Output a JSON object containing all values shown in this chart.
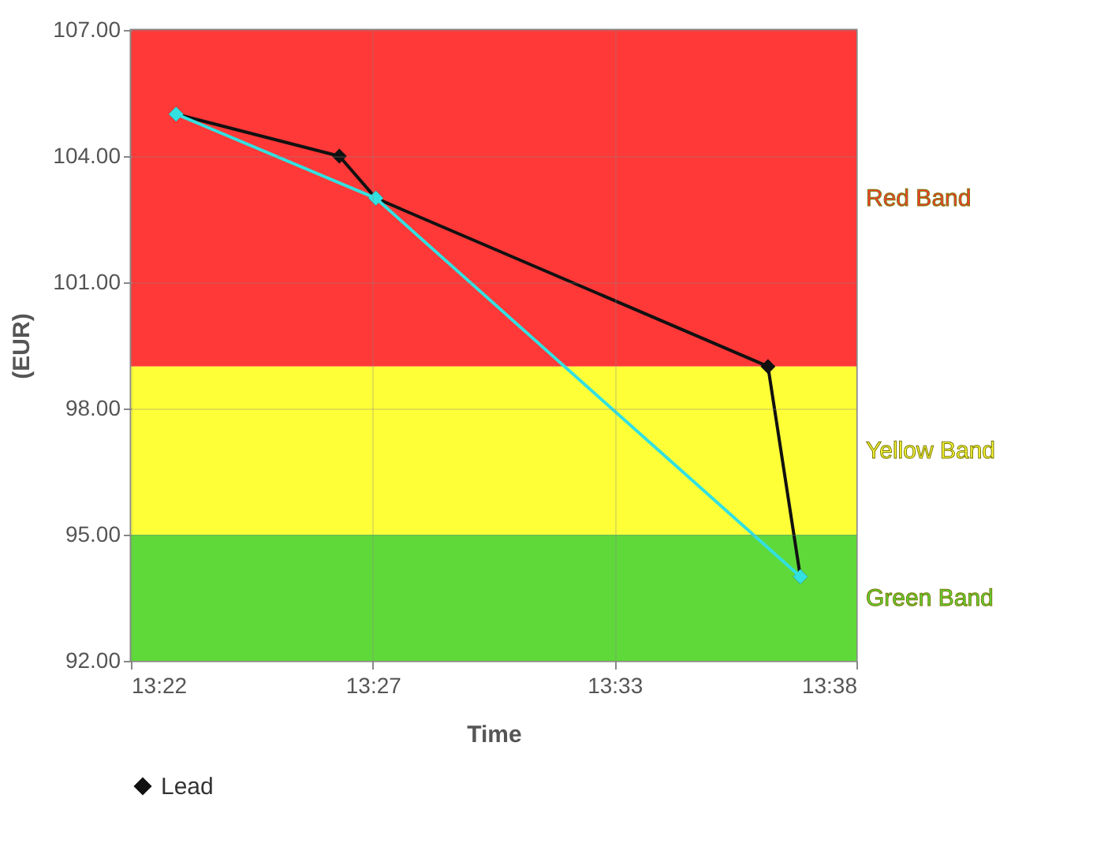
{
  "chart_data": {
    "type": "line",
    "xlabel": "Time",
    "ylabel": "(EUR)",
    "x": [
      13.3833,
      13.4433,
      13.4567,
      13.6008,
      13.6127
    ],
    "series": [
      {
        "name": "Lead",
        "color": "#111111",
        "values": [
          105,
          104,
          103,
          99,
          94
        ]
      },
      {
        "color": "#33e0e0",
        "x": [
          13.3833,
          13.4567,
          13.6127
        ],
        "values": [
          105,
          103,
          94
        ]
      }
    ],
    "xlim": [
      13.3667,
      13.6333
    ],
    "xticks": [
      {
        "value": 13.3667,
        "label": "13:22"
      },
      {
        "value": 13.4556,
        "label": "13:27"
      },
      {
        "value": 13.5444,
        "label": "13:33"
      },
      {
        "value": 13.6333,
        "label": "13:38"
      }
    ],
    "ylim": [
      92,
      107
    ],
    "yticks": [
      {
        "value": 92,
        "label": "92.00"
      },
      {
        "value": 95,
        "label": "95.00"
      },
      {
        "value": 98,
        "label": "98.00"
      },
      {
        "value": 101,
        "label": "101.00"
      },
      {
        "value": 104,
        "label": "104.00"
      },
      {
        "value": 107,
        "label": "107.00"
      }
    ],
    "bands": [
      {
        "axis": "y",
        "from": 99,
        "to": 107,
        "label": "Red Band",
        "color": "#ff3838"
      },
      {
        "axis": "y",
        "from": 95,
        "to": 99,
        "label": "Yellow Band",
        "color": "#ffff38"
      },
      {
        "axis": "y",
        "from": 92,
        "to": 95,
        "label": "Green Band",
        "color": "#5fd93a"
      }
    ],
    "grid": true,
    "legend": "bottom",
    "marker": "diamond",
    "line_style": "solid"
  }
}
